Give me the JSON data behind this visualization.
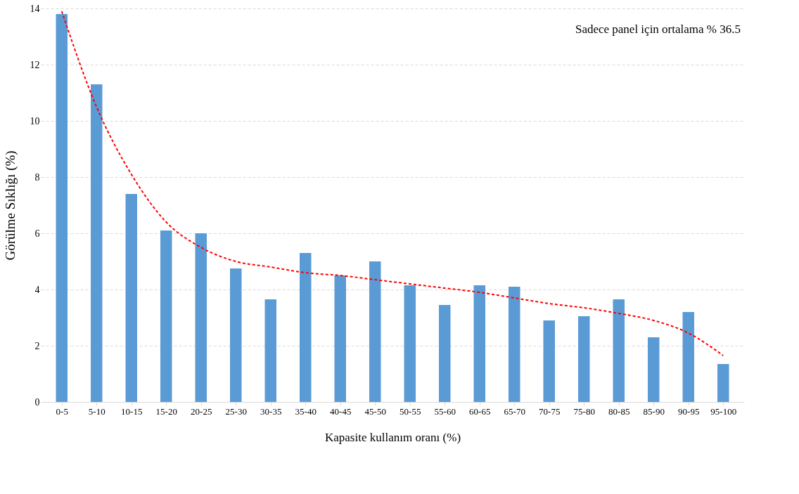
{
  "chart_data": {
    "type": "bar",
    "xlabel": "Kapasite kullanım oranı (%)",
    "ylabel": "Görülme Sıklığı (%)",
    "categories": [
      "0-5",
      "5-10",
      "10-15",
      "15-20",
      "20-25",
      "25-30",
      "30-35",
      "35-40",
      "40-45",
      "45-50",
      "50-55",
      "55-60",
      "60-65",
      "65-70",
      "70-75",
      "75-80",
      "80-85",
      "85-90",
      "90-95",
      "95-100"
    ],
    "series": [
      {
        "color": "#5b9bd5",
        "values": [
          13.8,
          11.3,
          7.4,
          6.1,
          6.0,
          4.75,
          3.65,
          5.3,
          4.5,
          5.0,
          4.15,
          3.45,
          4.15,
          4.1,
          2.9,
          3.05,
          3.65,
          2.3,
          3.2,
          1.35
        ]
      },
      {
        "type": "line",
        "color": "#ff0000",
        "line_style": "dashed",
        "values": [
          13.9,
          10.5,
          8.1,
          6.4,
          5.5,
          5.0,
          4.8,
          4.6,
          4.5,
          4.35,
          4.2,
          4.05,
          3.9,
          3.7,
          3.5,
          3.35,
          3.15,
          2.9,
          2.45,
          1.65
        ]
      }
    ],
    "ylim": [
      0,
      14
    ],
    "yticks": [
      0,
      2,
      4,
      6,
      8,
      10,
      12,
      14
    ],
    "grid": "y",
    "annotations": [
      "Sadece panel için ortalama % 36.5"
    ]
  }
}
